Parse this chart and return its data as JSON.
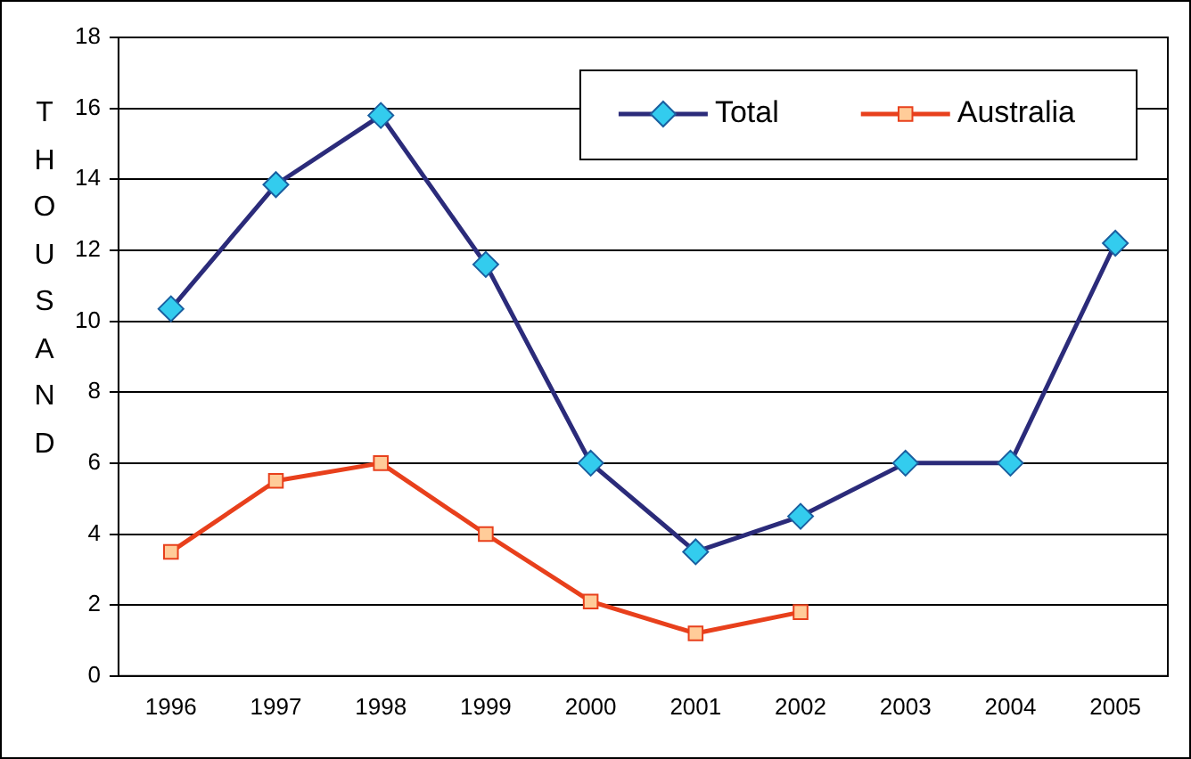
{
  "chart_data": {
    "type": "line",
    "ylabel": "THOUSAND",
    "categories": [
      "1996",
      "1997",
      "1998",
      "1999",
      "2000",
      "2001",
      "2002",
      "2003",
      "2004",
      "2005"
    ],
    "series": [
      {
        "name": "Total",
        "color": "#2b2b7a",
        "marker": "diamond",
        "values": [
          10.35,
          13.85,
          15.8,
          11.6,
          6.0,
          3.5,
          4.5,
          6.0,
          6.0,
          12.2
        ]
      },
      {
        "name": "Australia",
        "color": "#e8401c",
        "marker": "square",
        "values": [
          3.5,
          5.5,
          6.0,
          4.0,
          2.1,
          1.2,
          1.8,
          null,
          null,
          null
        ]
      }
    ],
    "ylim": [
      0,
      18
    ],
    "yticks": [
      0,
      2,
      4,
      6,
      8,
      10,
      12,
      14,
      16,
      18
    ],
    "grid": "y",
    "legend": "top right"
  }
}
